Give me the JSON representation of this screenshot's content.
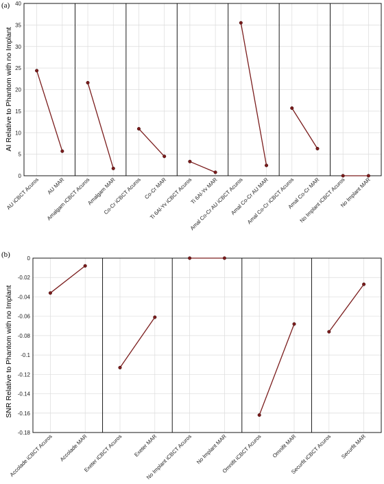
{
  "chart_data": [
    {
      "type": "line",
      "panel_label": "(a)",
      "ylabel": "AI Relative to Phantom with no Implant",
      "ylim": [
        0,
        40
      ],
      "yticks": [
        0,
        5,
        10,
        15,
        20,
        25,
        30,
        35,
        40
      ],
      "grid": true,
      "color": "#7a1c1c",
      "categories": [
        "AU iCBCT Acuros",
        "AU MAR",
        "Amalgam iCBCT Acuros",
        "Amalgam MAR",
        "Co-Cr iCBCT Acuros",
        "Co-Cr MAR",
        "Ti 6Al-Yv iCBCT Acuros",
        "Ti 6Al-Yv MAR",
        "Amal Co-Cr AU iCBCT Acuros",
        "Amal Co-Cr AU MAR",
        "Amal Co-Cr iCBCT Acuros",
        "Amal Co-Cr MAR",
        "No Implant iCBCT Acuros",
        "No Implant MAR"
      ],
      "groups": [
        {
          "x": [
            0,
            1
          ],
          "values": [
            24.4,
            5.7
          ]
        },
        {
          "x": [
            2,
            3
          ],
          "values": [
            21.6,
            1.7
          ]
        },
        {
          "x": [
            4,
            5
          ],
          "values": [
            10.9,
            4.5
          ]
        },
        {
          "x": [
            6,
            7
          ],
          "values": [
            3.3,
            0.8
          ]
        },
        {
          "x": [
            8,
            9
          ],
          "values": [
            35.5,
            2.4
          ]
        },
        {
          "x": [
            10,
            11
          ],
          "values": [
            15.7,
            6.3
          ]
        },
        {
          "x": [
            12,
            13
          ],
          "values": [
            0,
            0
          ]
        }
      ]
    },
    {
      "type": "line",
      "panel_label": "(b)",
      "ylabel": "SNR Relative to Phantom with no Implant",
      "ylim": [
        -0.18,
        0
      ],
      "yticks": [
        -0.18,
        -0.16,
        -0.14,
        -0.12,
        -0.1,
        -0.08,
        -0.06,
        -0.04,
        -0.02,
        0
      ],
      "ytick_labels": [
        "-0.18",
        "-0.16",
        "-0.14",
        "-0.12",
        "-0.1",
        "-0.08",
        "-0.06",
        "-0.04",
        "-0.02",
        "0"
      ],
      "grid": true,
      "color": "#7a1c1c",
      "categories": [
        "Accolade iCBCT Acuros",
        "Accolade MAR",
        "Exeter iCBCT Acuros",
        "Exeter MAR",
        "No Implant iCBCT Acuros",
        "No Implant MAR",
        "Omnifit iCBCT Acuros",
        "Omnifit MAR",
        "Securfit iCBCT Acuros",
        "Securfit MAR"
      ],
      "groups": [
        {
          "x": [
            0,
            1
          ],
          "values": [
            -0.036,
            -0.008
          ]
        },
        {
          "x": [
            2,
            3
          ],
          "values": [
            -0.113,
            -0.061
          ]
        },
        {
          "x": [
            4,
            5
          ],
          "values": [
            0,
            0
          ]
        },
        {
          "x": [
            6,
            7
          ],
          "values": [
            -0.162,
            -0.068
          ]
        },
        {
          "x": [
            8,
            9
          ],
          "values": [
            -0.076,
            -0.027
          ]
        }
      ]
    }
  ]
}
